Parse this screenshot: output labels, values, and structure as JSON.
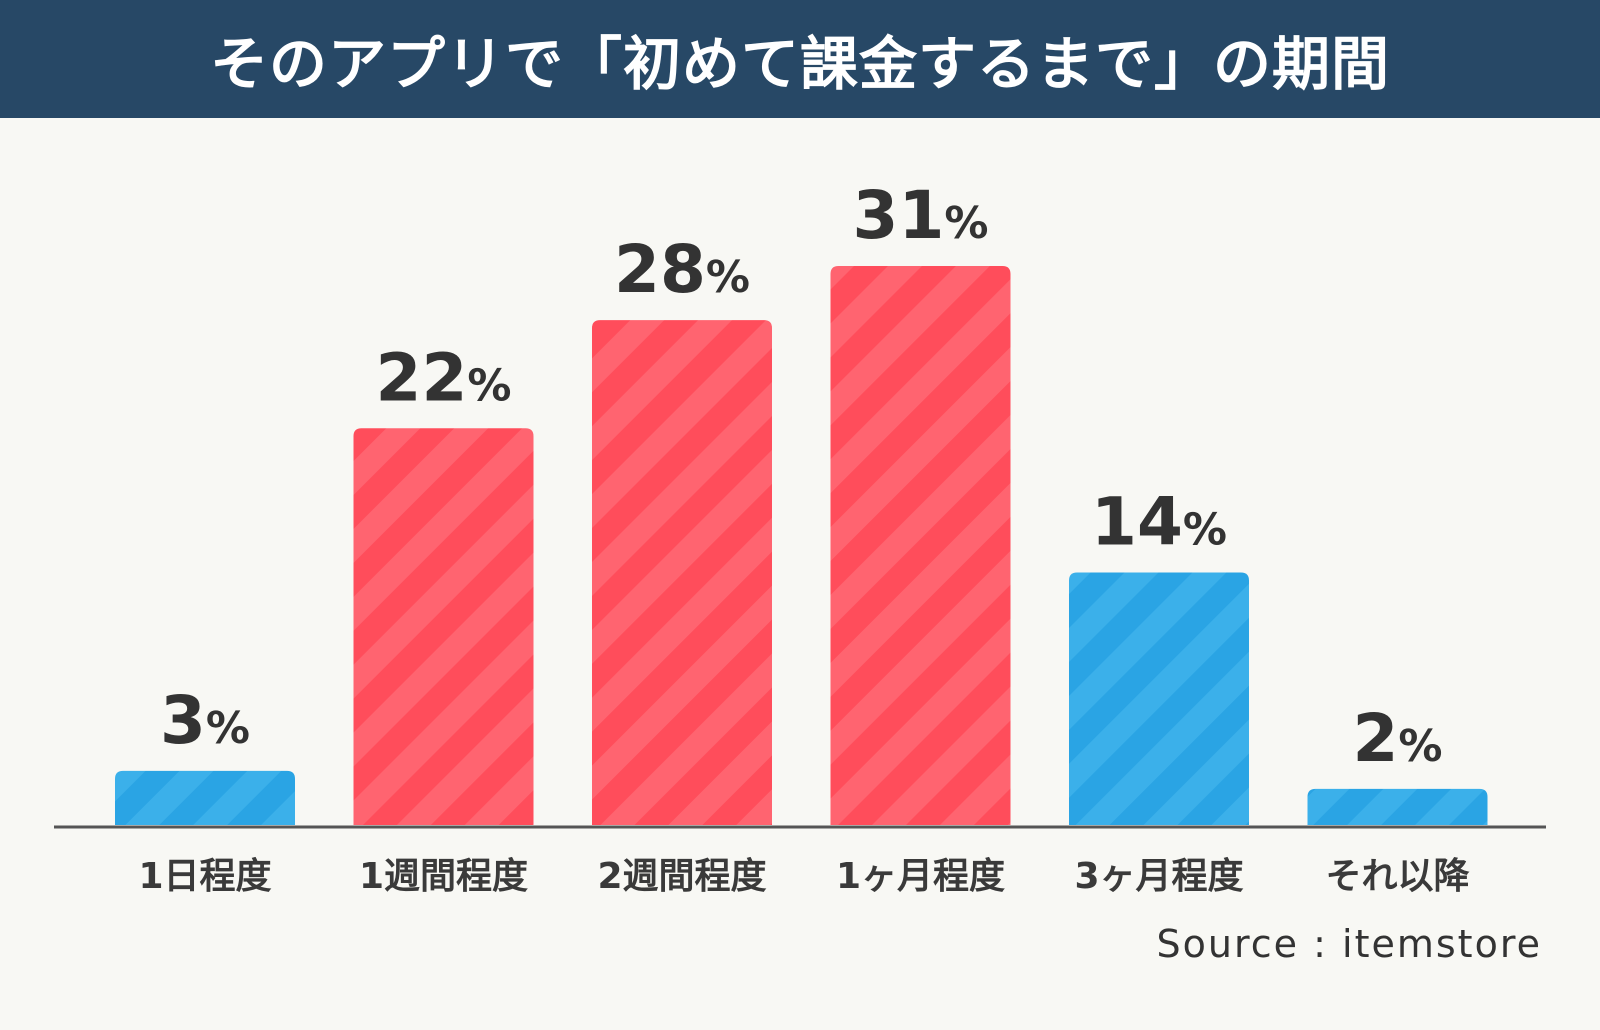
{
  "title": "そのアプリで「初めて課金するまで」の期間",
  "source": "Source : itemstore",
  "colors": {
    "header_bg": "#274866",
    "background": "#f8f8f4",
    "highlight": "#ff4d5b",
    "highlight_stripe": "#ff6470",
    "normal": "#2aa4e4",
    "normal_stripe": "#3bb0ea",
    "axis": "#555555",
    "text": "#333333"
  },
  "chart_data": {
    "type": "bar",
    "title": "そのアプリで「初めて課金するまで」の期間",
    "categories": [
      "1日程度",
      "1週間程度",
      "2週間程度",
      "1ヶ月程度",
      "3ヶ月程度",
      "それ以降"
    ],
    "values": [
      3,
      22,
      28,
      31,
      14,
      2
    ],
    "value_labels": [
      "3",
      "22",
      "28",
      "31",
      "14",
      "2"
    ],
    "unit": "%",
    "highlighted": [
      false,
      true,
      true,
      true,
      false,
      false
    ],
    "xlabel": "",
    "ylabel": "",
    "ylim": [
      0,
      31
    ],
    "grid": false,
    "legend": "none"
  }
}
